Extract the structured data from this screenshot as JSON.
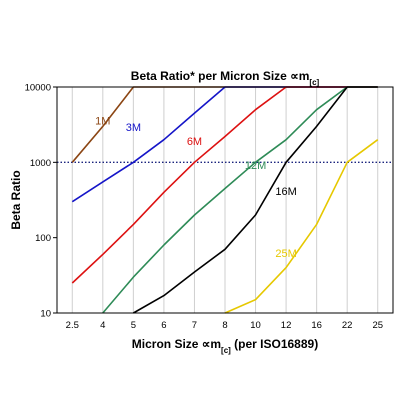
{
  "chart_data": {
    "type": "line",
    "title": "Beta Ratio* per Micron Size ∝m[c]",
    "xlabel": "Micron Size ∝m[c] (per ISO16889)",
    "ylabel": "Beta Ratio",
    "y_scale": "log",
    "ylim": [
      10,
      10000
    ],
    "categories": [
      "2.5",
      "4",
      "5",
      "6",
      "7",
      "8",
      "10",
      "12",
      "16",
      "22",
      "25"
    ],
    "y_ticks": [
      "10",
      "100",
      "1000",
      "10000"
    ],
    "grid": "vertical lines at each x category",
    "reference_line": {
      "y": 1000,
      "style": "dotted",
      "color": "#1a237e"
    },
    "series": [
      {
        "name": "1M",
        "color": "#8B4513",
        "points": [
          [
            "2.5",
            1000
          ],
          [
            "4",
            3000
          ],
          [
            "5",
            10000
          ],
          [
            "25",
            10000
          ]
        ]
      },
      {
        "name": "3M",
        "color": "#1515c8",
        "points": [
          [
            "2.5",
            300
          ],
          [
            "4",
            550
          ],
          [
            "5",
            1000
          ],
          [
            "6",
            2000
          ],
          [
            "7",
            4500
          ],
          [
            "8",
            10000
          ],
          [
            "25",
            10000
          ]
        ]
      },
      {
        "name": "6M",
        "color": "#dd1111",
        "points": [
          [
            "2.5",
            25
          ],
          [
            "4",
            60
          ],
          [
            "5",
            150
          ],
          [
            "6",
            400
          ],
          [
            "7",
            1000
          ],
          [
            "8",
            2200
          ],
          [
            "10",
            5000
          ],
          [
            "12",
            10000
          ],
          [
            "25",
            10000
          ]
        ]
      },
      {
        "name": "12M",
        "color": "#2e8b57",
        "points": [
          [
            "4",
            10
          ],
          [
            "5",
            30
          ],
          [
            "6",
            80
          ],
          [
            "7",
            200
          ],
          [
            "8",
            450
          ],
          [
            "10",
            1000
          ],
          [
            "12",
            2000
          ],
          [
            "16",
            5000
          ],
          [
            "22",
            10000
          ],
          [
            "25",
            10000
          ]
        ]
      },
      {
        "name": "16M",
        "color": "#000000",
        "points": [
          [
            "5",
            10
          ],
          [
            "6",
            17
          ],
          [
            "7",
            35
          ],
          [
            "8",
            70
          ],
          [
            "10",
            200
          ],
          [
            "12",
            1000
          ],
          [
            "16",
            3000
          ],
          [
            "22",
            10000
          ],
          [
            "25",
            10000
          ]
        ]
      },
      {
        "name": "25M",
        "color": "#e6c800",
        "points": [
          [
            "8",
            10
          ],
          [
            "10",
            15
          ],
          [
            "12",
            40
          ],
          [
            "16",
            150
          ],
          [
            "22",
            1000
          ],
          [
            "25",
            2000
          ]
        ]
      }
    ],
    "series_labels": [
      {
        "text": "1M",
        "x": "4",
        "y": 3200
      },
      {
        "text": "3M",
        "x": "5",
        "y": 2600
      },
      {
        "text": "6M",
        "x": "7",
        "y": 1700
      },
      {
        "text": "12M",
        "x": "10",
        "y": 820
      },
      {
        "text": "16M",
        "x": "12",
        "y": 370
      },
      {
        "text": "25M",
        "x": "12",
        "y": 55
      }
    ]
  }
}
